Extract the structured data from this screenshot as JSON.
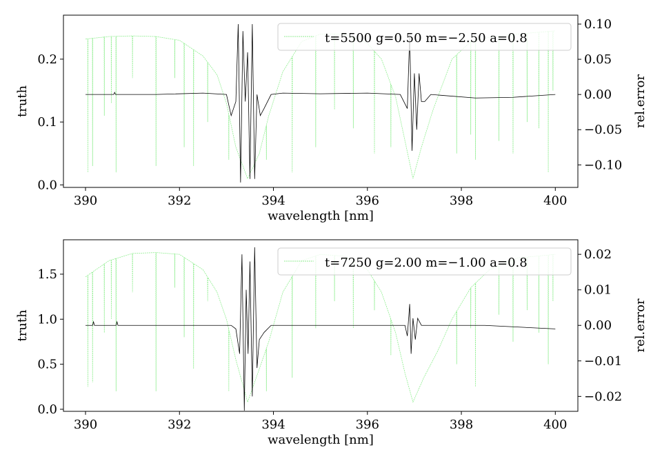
{
  "chart_data": [
    {
      "type": "line",
      "xlabel": "wavelength [nm]",
      "ylabel": "truth",
      "ylabel_right": "rel.error",
      "xlim": [
        389.53,
        400.48
      ],
      "ylim": [
        -0.004,
        0.27
      ],
      "ylim_right": [
        -0.132,
        0.1127
      ],
      "xticks": [
        390,
        392,
        394,
        396,
        398,
        400
      ],
      "xtick_labels": [
        "390",
        "392",
        "394",
        "396",
        "398",
        "400"
      ],
      "yticks": [
        0.0,
        0.1,
        0.2
      ],
      "ytick_labels": [
        "0.0",
        "0.1",
        "0.2"
      ],
      "yticks_right": [
        0.1,
        0.05,
        0.0,
        -0.05,
        -0.1
      ],
      "ytick_labels_right": [
        "0.10",
        "0.05",
        "0.00",
        "−0.05",
        "−0.10"
      ],
      "legend": {
        "label": "t=5500 g=0.50 m=−2.50 a=0.8",
        "placement": "top-right"
      },
      "colors": {
        "truth": "#90ee90",
        "error": "#000000"
      },
      "truth": {
        "continuum_x": [
          390,
          390.5,
          391,
          391.5,
          392,
          392.5,
          392.8,
          393.0,
          393.2,
          393.45,
          393.7,
          393.9,
          394.2,
          394.6,
          395.0,
          395.5,
          396.0,
          396.3,
          396.6,
          396.8,
          396.97,
          397.15,
          397.4,
          397.8,
          398.2,
          398.6,
          399.2,
          400
        ],
        "continuum_y": [
          0.232,
          0.236,
          0.237,
          0.236,
          0.23,
          0.205,
          0.175,
          0.13,
          0.06,
          0.01,
          0.05,
          0.11,
          0.18,
          0.228,
          0.24,
          0.24,
          0.225,
          0.2,
          0.14,
          0.07,
          0.01,
          0.06,
          0.12,
          0.2,
          0.228,
          0.235,
          0.24,
          0.245
        ],
        "lines": [
          [
            390.05,
            0.02
          ],
          [
            390.15,
            0.03
          ],
          [
            390.4,
            0.11
          ],
          [
            390.55,
            0.13
          ],
          [
            390.65,
            0.02
          ],
          [
            391.0,
            0.17
          ],
          [
            391.5,
            0.03
          ],
          [
            391.9,
            0.17
          ],
          [
            392.1,
            0.06
          ],
          [
            392.3,
            0.03
          ],
          [
            392.6,
            0.1
          ],
          [
            393.05,
            0.04
          ],
          [
            393.3,
            0.06
          ],
          [
            393.85,
            0.04
          ],
          [
            394.4,
            0.02
          ],
          [
            394.9,
            0.06
          ],
          [
            395.3,
            0.12
          ],
          [
            395.7,
            0.09
          ],
          [
            396.15,
            0.05
          ],
          [
            396.5,
            0.06
          ],
          [
            397.9,
            0.05
          ],
          [
            398.2,
            0.08
          ],
          [
            398.3,
            0.04
          ],
          [
            398.8,
            0.07
          ],
          [
            399.1,
            0.05
          ],
          [
            399.4,
            0.1
          ],
          [
            399.65,
            0.09
          ],
          [
            399.85,
            0.02
          ],
          [
            399.95,
            0.15
          ]
        ]
      },
      "error": {
        "x": [
          390,
          390.6,
          390.62,
          390.64,
          391.5,
          392.5,
          393.0,
          393.1,
          393.2,
          393.25,
          393.3,
          393.35,
          393.4,
          393.45,
          393.5,
          393.55,
          393.6,
          393.65,
          393.72,
          393.8,
          393.95,
          394.2,
          395.0,
          396.0,
          396.7,
          396.85,
          396.9,
          396.95,
          397.0,
          397.05,
          397.1,
          397.15,
          397.22,
          397.35,
          398.3,
          399.1,
          400
        ],
        "y": [
          0.0,
          0.0,
          0.003,
          0.0,
          0.0,
          0.002,
          0.0,
          -0.03,
          -0.01,
          0.1,
          -0.125,
          0.09,
          -0.01,
          0.06,
          -0.12,
          0.1,
          -0.12,
          0.0,
          -0.03,
          -0.02,
          0.0,
          0.002,
          0.001,
          0.002,
          0.0,
          -0.02,
          0.085,
          -0.08,
          0.03,
          -0.05,
          0.03,
          -0.01,
          -0.01,
          0.0,
          -0.005,
          -0.004,
          0.0
        ]
      }
    },
    {
      "type": "line",
      "xlabel": "wavelength [nm]",
      "ylabel": "truth",
      "ylabel_right": "rel.error",
      "xlim": [
        389.53,
        400.48
      ],
      "ylim": [
        -0.023,
        1.882
      ],
      "ylim_right": [
        -0.0242,
        0.0241
      ],
      "xticks": [
        390,
        392,
        394,
        396,
        398,
        400
      ],
      "xtick_labels": [
        "390",
        "392",
        "394",
        "396",
        "398",
        "400"
      ],
      "yticks": [
        0.0,
        0.5,
        1.0,
        1.5
      ],
      "ytick_labels": [
        "0.0",
        "0.5",
        "1.0",
        "1.5"
      ],
      "yticks_right": [
        0.02,
        0.01,
        0.0,
        -0.01,
        -0.02
      ],
      "ytick_labels_right": [
        "0.02",
        "0.01",
        "0.00",
        "−0.01",
        "−0.02"
      ],
      "legend": {
        "label": "t=7250 g=2.00 m=−1.00 a=0.8",
        "placement": "top-right"
      },
      "colors": {
        "truth": "#90ee90",
        "error": "#000000"
      },
      "truth": {
        "continuum_x": [
          390,
          390.5,
          391,
          391.5,
          392,
          392.5,
          392.8,
          393.0,
          393.2,
          393.45,
          393.7,
          393.9,
          394.2,
          394.6,
          395.0,
          395.5,
          396.0,
          396.3,
          396.6,
          396.8,
          396.97,
          397.2,
          397.5,
          397.8,
          398.2,
          398.6,
          399.2,
          400
        ],
        "continuum_y": [
          1.47,
          1.65,
          1.73,
          1.74,
          1.72,
          1.55,
          1.3,
          1.0,
          0.55,
          0.08,
          0.45,
          0.75,
          1.3,
          1.65,
          1.72,
          1.7,
          1.55,
          1.3,
          0.85,
          0.4,
          0.08,
          0.35,
          0.65,
          1.0,
          1.35,
          1.55,
          1.68,
          1.72
        ],
        "lines": [
          [
            390.05,
            0.25
          ],
          [
            390.15,
            0.3
          ],
          [
            390.4,
            0.85
          ],
          [
            390.55,
            1.0
          ],
          [
            390.65,
            0.2
          ],
          [
            391.0,
            1.3
          ],
          [
            391.5,
            0.2
          ],
          [
            391.9,
            1.35
          ],
          [
            392.1,
            0.8
          ],
          [
            392.3,
            0.45
          ],
          [
            392.6,
            1.2
          ],
          [
            393.05,
            0.2
          ],
          [
            393.3,
            0.45
          ],
          [
            393.85,
            0.2
          ],
          [
            394.4,
            0.35
          ],
          [
            394.9,
            0.9
          ],
          [
            395.3,
            1.2
          ],
          [
            395.7,
            0.9
          ],
          [
            396.15,
            1.1
          ],
          [
            396.5,
            0.6
          ],
          [
            397.9,
            0.5
          ],
          [
            398.2,
            0.9
          ],
          [
            398.3,
            0.25
          ],
          [
            398.8,
            1.05
          ],
          [
            399.1,
            0.75
          ],
          [
            399.4,
            1.1
          ],
          [
            399.65,
            0.85
          ],
          [
            399.85,
            0.5
          ],
          [
            399.95,
            1.2
          ]
        ]
      },
      "error": {
        "x": [
          390,
          390.15,
          390.17,
          390.19,
          390.65,
          390.67,
          390.69,
          391.5,
          393.1,
          393.2,
          393.28,
          393.33,
          393.38,
          393.42,
          393.46,
          393.5,
          393.55,
          393.6,
          393.65,
          393.7,
          393.8,
          393.95,
          394.0,
          396.8,
          396.85,
          396.9,
          396.93,
          396.97,
          397.02,
          397.07,
          397.15,
          398.5,
          400
        ],
        "y": [
          0.0,
          0.0,
          0.001,
          0.0,
          0.0,
          0.001,
          0.0,
          0.0,
          0.0,
          -0.001,
          -0.008,
          0.02,
          -0.024,
          0.01,
          -0.008,
          0.018,
          -0.02,
          0.022,
          -0.012,
          -0.004,
          -0.002,
          0.0,
          0.0,
          0.0,
          -0.003,
          0.006,
          -0.008,
          0.002,
          -0.004,
          0.002,
          0.0,
          0.0,
          -0.001
        ]
      }
    }
  ]
}
